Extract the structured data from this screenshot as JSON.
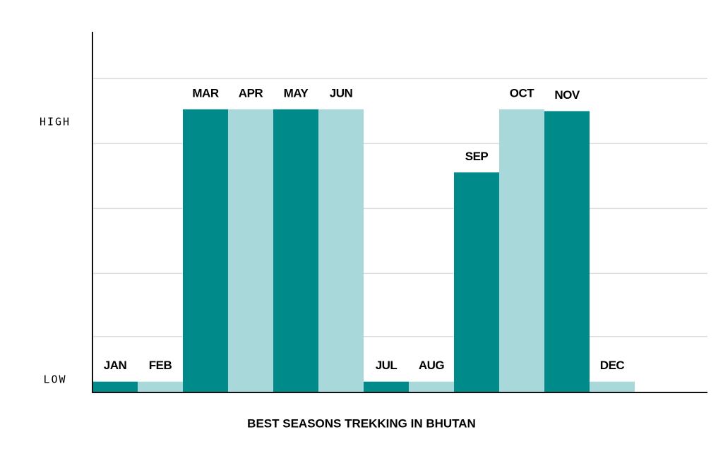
{
  "chart_data": {
    "type": "bar",
    "title": "BEST SEASONS TREKKING IN BHUTAN",
    "categories": [
      "JAN",
      "FEB",
      "MAR",
      "APR",
      "MAY",
      "JUN",
      "JUL",
      "AUG",
      "SEP",
      "OCT",
      "NOV",
      "DEC"
    ],
    "values": [
      3,
      3,
      78.5,
      78.5,
      78.5,
      78.5,
      3,
      3,
      61,
      78.5,
      78,
      3
    ],
    "colors": [
      "#008a8a",
      "#a9d8da",
      "#008a8a",
      "#a9d8da",
      "#008a8a",
      "#a9d8da",
      "#008a8a",
      "#a9d8da",
      "#008a8a",
      "#a9d8da",
      "#008a8a",
      "#a9d8da"
    ],
    "ylim": [
      0,
      100
    ],
    "yticks": [
      {
        "value": 75,
        "label": "HIGH"
      },
      {
        "value": 3.5,
        "label": "LOW"
      }
    ],
    "grid_lines": [
      15.5,
      33,
      51,
      69,
      87
    ],
    "grid": true
  }
}
